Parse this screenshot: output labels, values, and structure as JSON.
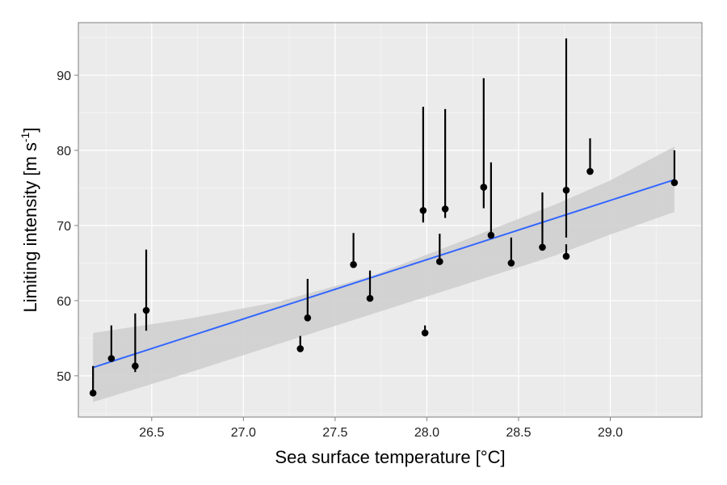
{
  "chart_data": {
    "type": "scatter",
    "title": "",
    "xlabel": "Sea surface temperature [°C]",
    "ylabel": "Limiting intensity [m s",
    "ylabel_superscript": "-1",
    "ylabel_suffix": "]",
    "xlim": [
      26.1,
      29.5
    ],
    "ylim": [
      44.5,
      97
    ],
    "x_ticks": [
      26.5,
      27.0,
      27.5,
      28.0,
      28.5,
      29.0
    ],
    "x_tick_labels": [
      "26.5",
      "27.0",
      "27.5",
      "28.0",
      "28.5",
      "29.0"
    ],
    "y_ticks": [
      50,
      60,
      70,
      80,
      90
    ],
    "y_tick_labels": [
      "50",
      "60",
      "70",
      "80",
      "90"
    ],
    "grid": true,
    "points": [
      {
        "x": 26.18,
        "y": 47.7,
        "low": 47.7,
        "high": 51.3
      },
      {
        "x": 26.28,
        "y": 52.3,
        "low": 52.3,
        "high": 56.7
      },
      {
        "x": 26.41,
        "y": 51.3,
        "low": 50.5,
        "high": 58.3
      },
      {
        "x": 26.47,
        "y": 58.7,
        "low": 56.0,
        "high": 66.8
      },
      {
        "x": 27.31,
        "y": 53.6,
        "low": 53.6,
        "high": 55.3
      },
      {
        "x": 27.35,
        "y": 57.7,
        "low": 57.7,
        "high": 62.9
      },
      {
        "x": 27.6,
        "y": 64.8,
        "low": 64.8,
        "high": 69.0
      },
      {
        "x": 27.69,
        "y": 60.3,
        "low": 60.3,
        "high": 64.0
      },
      {
        "x": 27.98,
        "y": 72.0,
        "low": 70.4,
        "high": 85.8
      },
      {
        "x": 27.99,
        "y": 55.7,
        "low": 55.7,
        "high": 56.7
      },
      {
        "x": 28.07,
        "y": 65.2,
        "low": 65.2,
        "high": 68.9
      },
      {
        "x": 28.1,
        "y": 72.2,
        "low": 71.0,
        "high": 85.5
      },
      {
        "x": 28.31,
        "y": 75.1,
        "low": 72.3,
        "high": 89.6
      },
      {
        "x": 28.35,
        "y": 68.7,
        "low": 68.7,
        "high": 78.4
      },
      {
        "x": 28.46,
        "y": 65.0,
        "low": 65.0,
        "high": 68.4
      },
      {
        "x": 28.63,
        "y": 67.1,
        "low": 67.1,
        "high": 74.4
      },
      {
        "x": 28.76,
        "y": 74.7,
        "low": 68.4,
        "high": 94.9
      },
      {
        "x": 28.76,
        "y": 65.9,
        "low": 65.9,
        "high": 67.5
      },
      {
        "x": 28.89,
        "y": 77.2,
        "low": 77.2,
        "high": 81.6
      },
      {
        "x": 29.35,
        "y": 75.7,
        "low": 75.7,
        "high": 80.0
      }
    ],
    "fit_line": {
      "x": [
        26.18,
        29.35
      ],
      "y": [
        51.1,
        76.1
      ]
    },
    "confidence_band": {
      "x": [
        26.18,
        26.7,
        27.2,
        27.7,
        28.2,
        28.7,
        29.0,
        29.35
      ],
      "lower": [
        46.5,
        50.4,
        54.3,
        58.2,
        62.1,
        66.0,
        68.8,
        71.8
      ],
      "upper": [
        55.7,
        57.6,
        59.9,
        63.3,
        68.0,
        72.8,
        76.0,
        80.5
      ]
    },
    "colors": {
      "panel": "#ebebeb",
      "grid_major": "#ffffff",
      "grid_minor": "#f5f5f5",
      "band": "#cfcfcf",
      "fit": "#3366ff",
      "points": "#000000",
      "frame": "#7f7f7f"
    }
  }
}
